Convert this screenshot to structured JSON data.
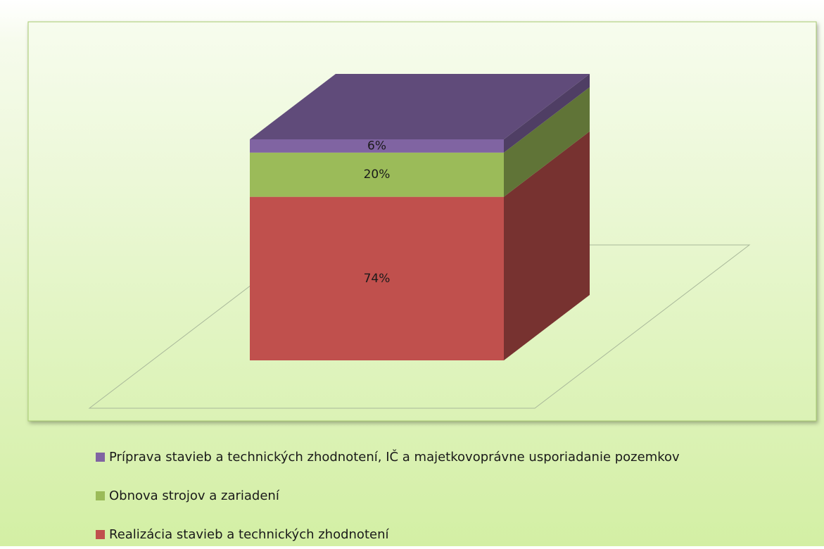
{
  "chart_data": {
    "type": "bar",
    "stacked": true,
    "three_d": true,
    "categories": [
      null
    ],
    "ylim": [
      0,
      100
    ],
    "series": [
      {
        "name": "Realizácia stavieb a technických zhodnotení",
        "color": "#c0504d",
        "values": [
          74
        ],
        "value_labels": [
          "74%"
        ]
      },
      {
        "name": "Obnova strojov a zariadení",
        "color": "#9bbb59",
        "values": [
          20
        ],
        "value_labels": [
          "20%"
        ]
      },
      {
        "name": "Príprava stavieb a technických zhodnotení, IČ a majetkovoprávne usporiadanie pozemkov",
        "color": "#8064a2",
        "values": [
          6
        ],
        "value_labels": [
          "6%"
        ]
      }
    ],
    "legend": "bottom"
  }
}
